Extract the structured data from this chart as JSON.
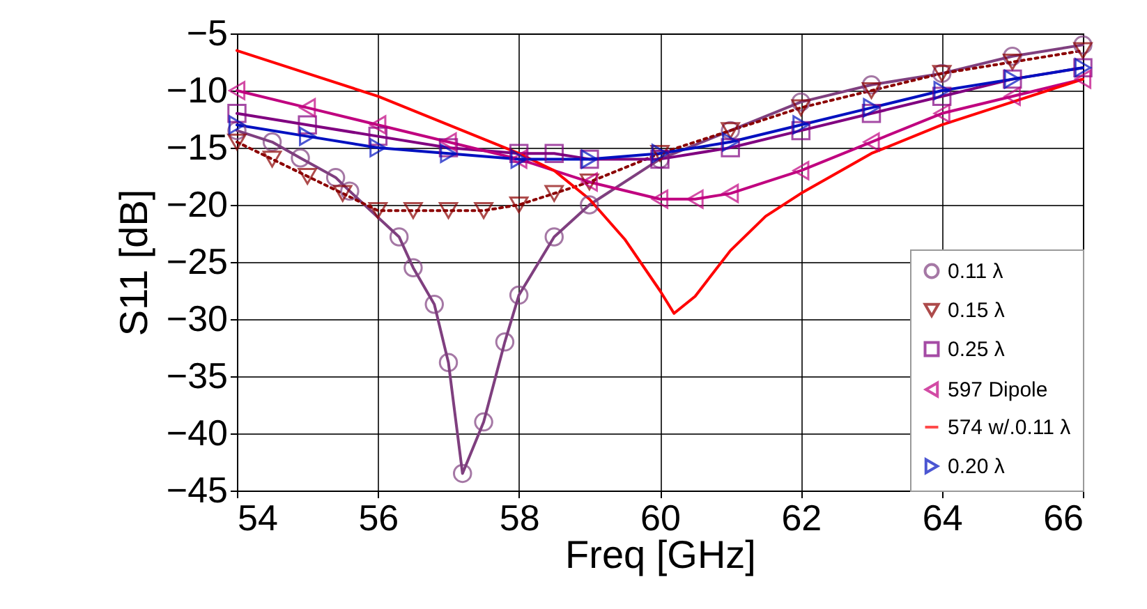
{
  "chart_data": {
    "type": "line",
    "xlabel": "Freq [GHz]",
    "ylabel": "S11 [dB]",
    "xlim": [
      54,
      66
    ],
    "xticks": [
      54,
      56,
      58,
      60,
      62,
      64,
      66
    ],
    "ylim": [
      -45,
      -5
    ],
    "yticks": [
      -45,
      -40,
      -35,
      -30,
      -25,
      -20,
      -15,
      -10,
      -5
    ],
    "grid": true,
    "legend": "bottom right",
    "series": [
      {
        "name": "0.11 λ",
        "color": "#7f3f7f",
        "marker": "circle",
        "line_style": "solid",
        "x": [
          54,
          54.5,
          54.9,
          55.4,
          55.6,
          56.3,
          56.5,
          56.8,
          57,
          57.2,
          57.5,
          57.8,
          58,
          58.5,
          59,
          60,
          61,
          62,
          63,
          64,
          65,
          66
        ],
        "values": [
          -13.5,
          -14.5,
          -15.9,
          -17.6,
          -18.8,
          -22.8,
          -25.5,
          -28.7,
          -33.8,
          -43.5,
          -39,
          -32,
          -27.9,
          -22.8,
          -20,
          -16,
          -13.5,
          -11,
          -9.5,
          -8.5,
          -7,
          -6
        ]
      },
      {
        "name": "0.15 λ",
        "color": "#8b0000",
        "marker": "triangle-down",
        "line_style": "dotted",
        "x": [
          54,
          54.5,
          55,
          55.5,
          56,
          56.5,
          57,
          57.5,
          58,
          58.5,
          59,
          60,
          61,
          62,
          63,
          64,
          65,
          66
        ],
        "values": [
          -14.5,
          -16,
          -17.5,
          -19,
          -20.5,
          -20.5,
          -20.5,
          -20.5,
          -20,
          -19,
          -18,
          -15.5,
          -13.5,
          -11.5,
          -10,
          -8.5,
          -7.5,
          -6.5
        ]
      },
      {
        "name": " 0.25 λ",
        "color": "#800080",
        "marker": "square",
        "line_style": "solid",
        "x": [
          54,
          55,
          56,
          57,
          58,
          58.5,
          59,
          60,
          61,
          62,
          63,
          64,
          65,
          66
        ],
        "values": [
          -12,
          -13,
          -14,
          -15,
          -15.5,
          -15.5,
          -16,
          -16,
          -15,
          -13.5,
          -12,
          -10.5,
          -9,
          -8
        ]
      },
      {
        "name": "597 Dipole",
        "color": "#c0007f",
        "marker": "triangle-left",
        "line_style": "solid",
        "x": [
          54,
          55,
          56,
          57,
          58,
          59,
          60,
          60.5,
          61,
          62,
          63,
          64,
          65,
          66
        ],
        "values": [
          -10,
          -11.5,
          -13,
          -14.5,
          -16,
          -18,
          -19.5,
          -19.5,
          -19,
          -17,
          -14.5,
          -12,
          -10.5,
          -9
        ]
      },
      {
        "name": "574 w/.0.11 λ",
        "color": "#ff0000",
        "marker": "none",
        "line_style": "solid",
        "x": [
          54,
          55,
          56,
          57,
          58,
          58.5,
          59,
          59.5,
          60,
          60.2,
          60.5,
          61,
          61.5,
          62,
          63,
          64,
          65,
          66
        ],
        "values": [
          -6.5,
          -8.5,
          -10.5,
          -13,
          -15.5,
          -17,
          -19.5,
          -23,
          -27.5,
          -29.5,
          -28,
          -24,
          -21,
          -19,
          -15.5,
          -13,
          -11,
          -9
        ]
      },
      {
        "name": "0.20 λ",
        "color": "#0010c0",
        "marker": "triangle-right",
        "line_style": "solid",
        "x": [
          54,
          55,
          56,
          57,
          58,
          59,
          60,
          61,
          62,
          63,
          64,
          65,
          66
        ],
        "values": [
          -13,
          -14,
          -15,
          -15.5,
          -16,
          -16,
          -15.5,
          -14.5,
          -13,
          -11.5,
          -10,
          -9,
          -8
        ]
      }
    ]
  }
}
